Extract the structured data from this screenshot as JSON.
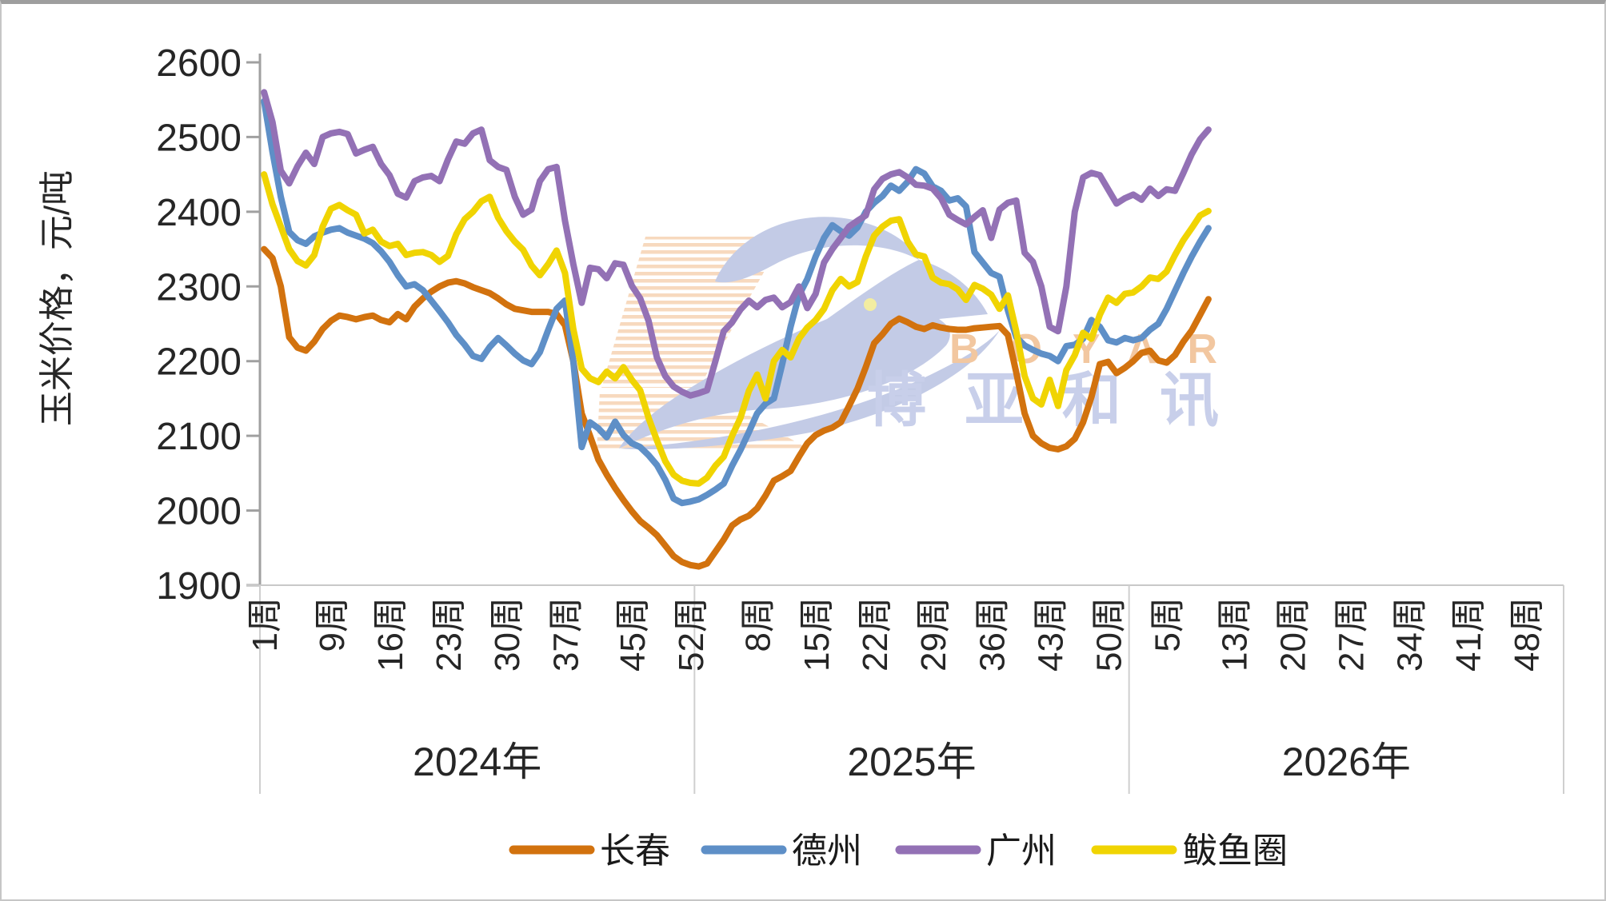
{
  "watermark": {
    "en": "BOYAR",
    "cn": "博亚和讯"
  },
  "chart_data": {
    "type": "line",
    "title": "",
    "ylabel": "玉米价格，元/吨",
    "ylim": [
      1900,
      2600
    ],
    "y_ticks": [
      2600,
      2500,
      2400,
      2300,
      2200,
      2100,
      2000,
      1900
    ],
    "grid": false,
    "legend_position": "bottom",
    "x_unit": "week-of-year",
    "x_groups": [
      {
        "label": "2024年",
        "weeks_in_year": 52,
        "tick_weeks": [
          1,
          9,
          16,
          23,
          30,
          37,
          45,
          52
        ],
        "tick_labels": [
          "1周",
          "9周",
          "16周",
          "23周",
          "30周",
          "37周",
          "45周",
          "52周"
        ]
      },
      {
        "label": "2025年",
        "weeks_in_year": 52,
        "tick_weeks": [
          8,
          15,
          22,
          29,
          36,
          43,
          50
        ],
        "tick_labels": [
          "8周",
          "15周",
          "22周",
          "29周",
          "36周",
          "43周",
          "50周"
        ]
      },
      {
        "label": "2026年",
        "weeks_in_year": 52,
        "tick_weeks": [
          5,
          13,
          20,
          27,
          34,
          41,
          48
        ],
        "tick_labels": [
          "5周",
          "13周",
          "20周",
          "27周",
          "34周",
          "41周",
          "48周"
        ]
      }
    ],
    "series": [
      {
        "name": "长春",
        "color": "#D2720E",
        "values_2024": [
          2350,
          2338,
          2300,
          2232,
          2218,
          2214,
          2226,
          2243,
          2254,
          2261,
          2259,
          2256,
          2259,
          2261,
          2255,
          2252,
          2263,
          2256,
          2273,
          2284,
          2293,
          2300,
          2305,
          2307,
          2304,
          2299,
          2295,
          2291,
          2284,
          2276,
          2270,
          2268,
          2266,
          2266,
          2266,
          2263,
          2248,
          2200,
          2130,
          2100,
          2068,
          2048,
          2030,
          2014,
          1999,
          1986,
          1977,
          1967,
          1953,
          1939,
          1931,
          1927
        ],
        "values_2025": [
          1925,
          1929,
          1945,
          1961,
          1980,
          1988,
          1993,
          2003,
          2020,
          2040,
          2046,
          2053,
          2072,
          2090,
          2101,
          2107,
          2111,
          2118,
          2140,
          2163,
          2192,
          2224,
          2236,
          2250,
          2257,
          2252,
          2246,
          2243,
          2248,
          2245,
          2243,
          2242,
          2242,
          2244,
          2245,
          2246,
          2247,
          2235,
          2185,
          2130,
          2100,
          2090,
          2084,
          2082,
          2086,
          2096,
          2118,
          2152,
          2196,
          2199,
          2184,
          2191
        ],
        "values_2026": [
          2200,
          2211,
          2214,
          2201,
          2198,
          2208,
          2226,
          2241,
          2262,
          2283
        ]
      },
      {
        "name": "德州",
        "color": "#5E8FC7",
        "values_2024": [
          2548,
          2480,
          2420,
          2373,
          2362,
          2357,
          2367,
          2372,
          2376,
          2378,
          2372,
          2368,
          2364,
          2358,
          2347,
          2333,
          2315,
          2300,
          2303,
          2295,
          2281,
          2267,
          2252,
          2235,
          2222,
          2207,
          2203,
          2219,
          2231,
          2221,
          2210,
          2201,
          2196,
          2212,
          2242,
          2270,
          2281,
          2200,
          2085,
          2118,
          2110,
          2098,
          2119,
          2101,
          2090,
          2085,
          2074,
          2061,
          2041,
          2016,
          2010,
          2012
        ],
        "values_2025": [
          2015,
          2021,
          2028,
          2036,
          2060,
          2081,
          2105,
          2130,
          2143,
          2150,
          2196,
          2246,
          2288,
          2310,
          2340,
          2365,
          2382,
          2374,
          2368,
          2379,
          2400,
          2412,
          2421,
          2435,
          2428,
          2440,
          2457,
          2451,
          2434,
          2428,
          2415,
          2418,
          2407,
          2346,
          2332,
          2318,
          2313,
          2268,
          2232,
          2221,
          2215,
          2210,
          2207,
          2200,
          2220,
          2222,
          2230,
          2255,
          2246,
          2228,
          2225,
          2231
        ],
        "values_2026": [
          2228,
          2231,
          2242,
          2250,
          2270,
          2294,
          2318,
          2340,
          2360,
          2378
        ]
      },
      {
        "name": "广州",
        "color": "#9371B5",
        "values_2024": [
          2560,
          2520,
          2455,
          2438,
          2461,
          2479,
          2464,
          2500,
          2505,
          2507,
          2504,
          2478,
          2483,
          2487,
          2464,
          2449,
          2424,
          2419,
          2441,
          2446,
          2448,
          2441,
          2470,
          2494,
          2491,
          2505,
          2510,
          2469,
          2460,
          2456,
          2420,
          2396,
          2403,
          2441,
          2457,
          2460,
          2388,
          2330,
          2278,
          2325,
          2323,
          2311,
          2331,
          2329,
          2301,
          2284,
          2254,
          2205,
          2180,
          2166,
          2159,
          2154
        ],
        "values_2025": [
          2157,
          2161,
          2200,
          2240,
          2252,
          2269,
          2281,
          2272,
          2282,
          2285,
          2272,
          2279,
          2300,
          2271,
          2290,
          2332,
          2350,
          2365,
          2380,
          2388,
          2395,
          2430,
          2444,
          2450,
          2453,
          2446,
          2436,
          2435,
          2431,
          2418,
          2396,
          2389,
          2383,
          2393,
          2402,
          2365,
          2403,
          2412,
          2415,
          2345,
          2333,
          2300,
          2246,
          2240,
          2300,
          2400,
          2446,
          2452,
          2449,
          2430,
          2411,
          2418
        ],
        "values_2026": [
          2423,
          2416,
          2431,
          2421,
          2430,
          2428,
          2452,
          2477,
          2497,
          2510
        ]
      },
      {
        "name": "鲅鱼圈",
        "color": "#F0D402",
        "values_2024": [
          2450,
          2410,
          2380,
          2350,
          2334,
          2328,
          2342,
          2380,
          2404,
          2409,
          2402,
          2396,
          2371,
          2376,
          2360,
          2354,
          2357,
          2342,
          2345,
          2346,
          2342,
          2333,
          2341,
          2370,
          2390,
          2400,
          2414,
          2420,
          2392,
          2374,
          2360,
          2349,
          2328,
          2315,
          2330,
          2348,
          2318,
          2243,
          2190,
          2177,
          2172,
          2186,
          2177,
          2192,
          2175,
          2161,
          2124,
          2094,
          2066,
          2048,
          2040,
          2037
        ],
        "values_2025": [
          2036,
          2044,
          2060,
          2072,
          2100,
          2124,
          2160,
          2182,
          2150,
          2200,
          2215,
          2205,
          2230,
          2245,
          2255,
          2270,
          2295,
          2310,
          2300,
          2306,
          2340,
          2368,
          2380,
          2388,
          2390,
          2360,
          2343,
          2340,
          2312,
          2305,
          2303,
          2296,
          2282,
          2302,
          2297,
          2289,
          2270,
          2288,
          2240,
          2180,
          2150,
          2142,
          2175,
          2140,
          2188,
          2208,
          2238,
          2230,
          2262,
          2285,
          2278,
          2290
        ],
        "values_2026": [
          2292,
          2300,
          2312,
          2310,
          2320,
          2342,
          2362,
          2378,
          2395,
          2401
        ]
      }
    ]
  }
}
